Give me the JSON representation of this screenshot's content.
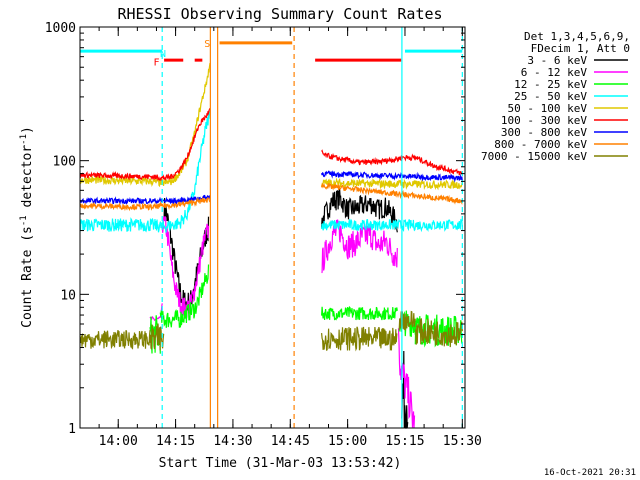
{
  "chart_data": {
    "type": "line",
    "title": "RHESSI Observing Summary Count Rates",
    "xlabel": "Start Time (31-Mar-03 13:53:42)",
    "ylabel_main": "Count Rate (s",
    "ylabel_sup1": "-1",
    "ylabel_mid": " detector",
    "ylabel_sup2": "-1",
    "ylabel_end": ")",
    "y_scale": "log",
    "ylim": [
      1,
      1000
    ],
    "y_ticks": [
      {
        "value": 1,
        "label": "1"
      },
      {
        "value": 10,
        "label": "10"
      },
      {
        "value": 100,
        "label": "100"
      },
      {
        "value": 1000,
        "label": "1000"
      }
    ],
    "x_range_min": [
      -3.7,
      97
    ],
    "x_ticks": [
      {
        "value": 6.3,
        "label": "14:00"
      },
      {
        "value": 21.3,
        "label": "14:15"
      },
      {
        "value": 36.3,
        "label": "14:30"
      },
      {
        "value": 51.3,
        "label": "14:45"
      },
      {
        "value": 66.3,
        "label": "15:00"
      },
      {
        "value": 81.3,
        "label": "15:15"
      },
      {
        "value": 96.3,
        "label": "15:30"
      }
    ],
    "legend_header": [
      "Det 1,3,4,5,6,9,",
      "FDecim 1, Att 0"
    ],
    "timestamp": "16-Oct-2021 20:31",
    "series": [
      {
        "name": "3 - 6 keV",
        "color": "#000000",
        "segments": [
          {
            "t": [
              18.3,
              18.8,
              19.5,
              20.3,
              21.3,
              22.3,
              23.3,
              24.3,
              25.3,
              26.3,
              27.3,
              28.3,
              29.3,
              29.9
            ],
            "v": [
              45,
              42,
              33,
              24,
              16,
              11,
              9,
              8.5,
              9,
              12,
              16,
              22,
              28,
              31
            ],
            "noise": 0.09
          },
          {
            "t": [
              59.5,
              60.5,
              62.3,
              64.3,
              66.3,
              68.3,
              70.3,
              72.3,
              74.3,
              76.3,
              78.3,
              79.3
            ],
            "v": [
              35,
              40,
              50,
              52,
              43,
              44,
              46,
              48,
              43,
              45,
              38,
              34
            ],
            "noise": 0.08
          },
          {
            "t": [
              80.5,
              82.0
            ],
            "v": [
              1.7,
              1.7
            ],
            "noise": 0.35
          }
        ]
      },
      {
        "name": "6 - 12 keV",
        "color": "#ff00ff",
        "segments": [
          {
            "t": [
              14.6,
              17.3,
              17.8
            ],
            "v": [
              6.5,
              6.5,
              8.2
            ],
            "noise": 0.02
          },
          {
            "t": [
              17.8,
              18.8,
              19.5,
              20.3,
              21.3,
              22.3,
              23.3,
              24.3,
              25.3,
              26.3,
              27.3,
              28.3,
              29.3,
              29.9
            ],
            "v": [
              34,
              32,
              24,
              16,
              11,
              9,
              8,
              8,
              8.5,
              11,
              15,
              22,
              28,
              30
            ],
            "noise": 0.08
          },
          {
            "t": [
              59.5,
              60.5,
              62.3,
              64.3,
              66.3,
              68.3,
              70.3,
              72.3,
              74.3,
              76.3,
              78.3,
              79.3
            ],
            "v": [
              17,
              20,
              28,
              30,
              23,
              24,
              27,
              28,
              23,
              25,
              20,
              19
            ],
            "noise": 0.1
          },
          {
            "t": [
              79.6,
              80.0,
              82.5,
              83.8
            ],
            "v": [
              6.5,
              3,
              1.6,
              1.0
            ],
            "noise": 0.15
          }
        ]
      },
      {
        "name": "12 - 25 keV",
        "color": "#00ff00",
        "segments": [
          {
            "t": [
              14.6,
              17.3
            ],
            "v": [
              5.0,
              5.0
            ],
            "noise": 0.15
          },
          {
            "t": [
              17.3,
              22.3,
              24.3,
              26.3,
              27.3,
              28.3,
              29.3,
              29.9
            ],
            "v": [
              6.5,
              6.5,
              7.2,
              7.8,
              9,
              11,
              13,
              15
            ],
            "noise": 0.07
          },
          {
            "t": [
              59.5,
              79.3
            ],
            "v": [
              7.2,
              7.2
            ],
            "noise": 0.05
          },
          {
            "t": [
              79.8,
              84.0
            ],
            "v": [
              6.2,
              6.0
            ],
            "noise": 0.1
          },
          {
            "t": [
              84.0,
              96.3
            ],
            "v": [
              5.5,
              5.3
            ],
            "noise": 0.12
          }
        ]
      },
      {
        "name": "25 - 50 keV",
        "color": "#00ffff",
        "segments": [
          {
            "t": [
              -3.7,
              14.6,
              18.3,
              22.3,
              24.3,
              26.3,
              27.3,
              28.3,
              29.3,
              30.3
            ],
            "v": [
              33,
              33,
              32,
              34,
              40,
              60,
              90,
              130,
              180,
              230
            ],
            "noise": 0.05
          },
          {
            "t": [
              59.5,
              96.3
            ],
            "v": [
              33,
              33
            ],
            "noise": 0.04
          }
        ]
      },
      {
        "name": "50 - 100 keV",
        "color": "#e0c800",
        "segments": [
          {
            "t": [
              -3.7,
              14.6,
              18.3,
              20.3,
              22.3,
              24.3,
              26.3,
              27.3,
              28.3,
              29.3,
              30.3
            ],
            "v": [
              72,
              70,
              68,
              70,
              80,
              100,
              160,
              220,
              290,
              380,
              520
            ],
            "noise": 0.03
          },
          {
            "t": [
              59.5,
              96.3
            ],
            "v": [
              68,
              66
            ],
            "noise": 0.03
          }
        ]
      },
      {
        "name": "100 - 300 keV",
        "color": "#ff0000",
        "segments": [
          {
            "t": [
              -3.7,
              14.6,
              18.3,
              20.3,
              22.3,
              24.3,
              26.3,
              27.3,
              28.3,
              29.3,
              30.3
            ],
            "v": [
              78,
              76,
              74,
              76,
              85,
              105,
              150,
              180,
              200,
              215,
              240
            ],
            "noise": 0.02
          },
          {
            "t": [
              59.5,
              60.3,
              64.3,
              69.3,
              74.3,
              79.3,
              80.5,
              84.3,
              88.3,
              92.3,
              96.3
            ],
            "v": [
              115,
              110,
              103,
              97,
              98,
              103,
              106,
              105,
              93,
              86,
              80
            ],
            "noise": 0.02
          }
        ]
      },
      {
        "name": "300 - 800 keV",
        "color": "#0000ff",
        "segments": [
          {
            "t": [
              -3.7,
              14.6,
              22.3,
              29.3,
              30.3
            ],
            "v": [
              50,
              50,
              50,
              53,
              54
            ],
            "noise": 0.02
          },
          {
            "t": [
              59.5,
              96.3
            ],
            "v": [
              80,
              74
            ],
            "noise": 0.02
          }
        ]
      },
      {
        "name": "800 - 7000 keV",
        "color": "#ff8000",
        "segments": [
          {
            "t": [
              -3.7,
              14.6,
              18.3,
              22.3,
              26.3,
              30.3
            ],
            "v": [
              46,
              45,
              46,
              47,
              49,
              51
            ],
            "noise": 0.02
          },
          {
            "t": [
              59.5,
              96.3
            ],
            "v": [
              65,
              50
            ],
            "noise": 0.02
          }
        ]
      },
      {
        "name": "7000 - 15000 keV",
        "color": "#808000",
        "segments": [
          {
            "t": [
              -3.7,
              14.6
            ],
            "v": [
              4.6,
              4.6
            ],
            "noise": 0.07
          },
          {
            "t": [
              14.6,
              18.3
            ],
            "v": [
              4.6,
              4.6
            ],
            "noise": 0.12
          },
          {
            "t": [
              59.5,
              79.3
            ],
            "v": [
              4.7,
              4.6
            ],
            "noise": 0.09
          },
          {
            "t": [
              79.8,
              84.0
            ],
            "v": [
              6.5,
              6.3
            ],
            "noise": 0.08
          },
          {
            "t": [
              84.0,
              96.3
            ],
            "v": [
              5.3,
              5.0
            ],
            "noise": 0.1
          }
        ]
      }
    ],
    "flags": [
      {
        "label": "N",
        "label_color": "#00ffff",
        "text_t": 18.0,
        "text_v": 640,
        "bars": [
          {
            "t0": -3.7,
            "t1": 17.7,
            "v": 660,
            "color": "#00ffff"
          },
          {
            "t0": 81.3,
            "t1": 96.3,
            "v": 660,
            "color": "#00ffff"
          }
        ]
      },
      {
        "label": "F",
        "label_color": "#ff0000",
        "text_t": 16.3,
        "text_v": 550,
        "bars": [
          {
            "t0": 18.3,
            "t1": 23.3,
            "v": 565,
            "color": "#ff0000"
          },
          {
            "t0": 26.3,
            "t1": 28.3,
            "v": 565,
            "color": "#ff0000"
          },
          {
            "t0": 57.8,
            "t1": 80.3,
            "v": 565,
            "color": "#ff0000"
          }
        ]
      },
      {
        "label": "S",
        "label_color": "#ff8000",
        "text_t": 29.6,
        "text_v": 760,
        "bars": [
          {
            "t0": 32.8,
            "t1": 51.8,
            "v": 760,
            "color": "#ff8000"
          }
        ]
      }
    ],
    "vlines": [
      {
        "t": 17.8,
        "color": "#00ffff",
        "style": "dashed"
      },
      {
        "t": 30.4,
        "color": "#ff8000",
        "style": "solid"
      },
      {
        "t": 32.3,
        "color": "#ff8000",
        "style": "solid"
      },
      {
        "t": 52.3,
        "color": "#ff8000",
        "style": "dashed"
      },
      {
        "t": 80.5,
        "color": "#00ffff",
        "style": "solid"
      },
      {
        "t": 96.3,
        "color": "#00ffff",
        "style": "dashed"
      }
    ]
  }
}
